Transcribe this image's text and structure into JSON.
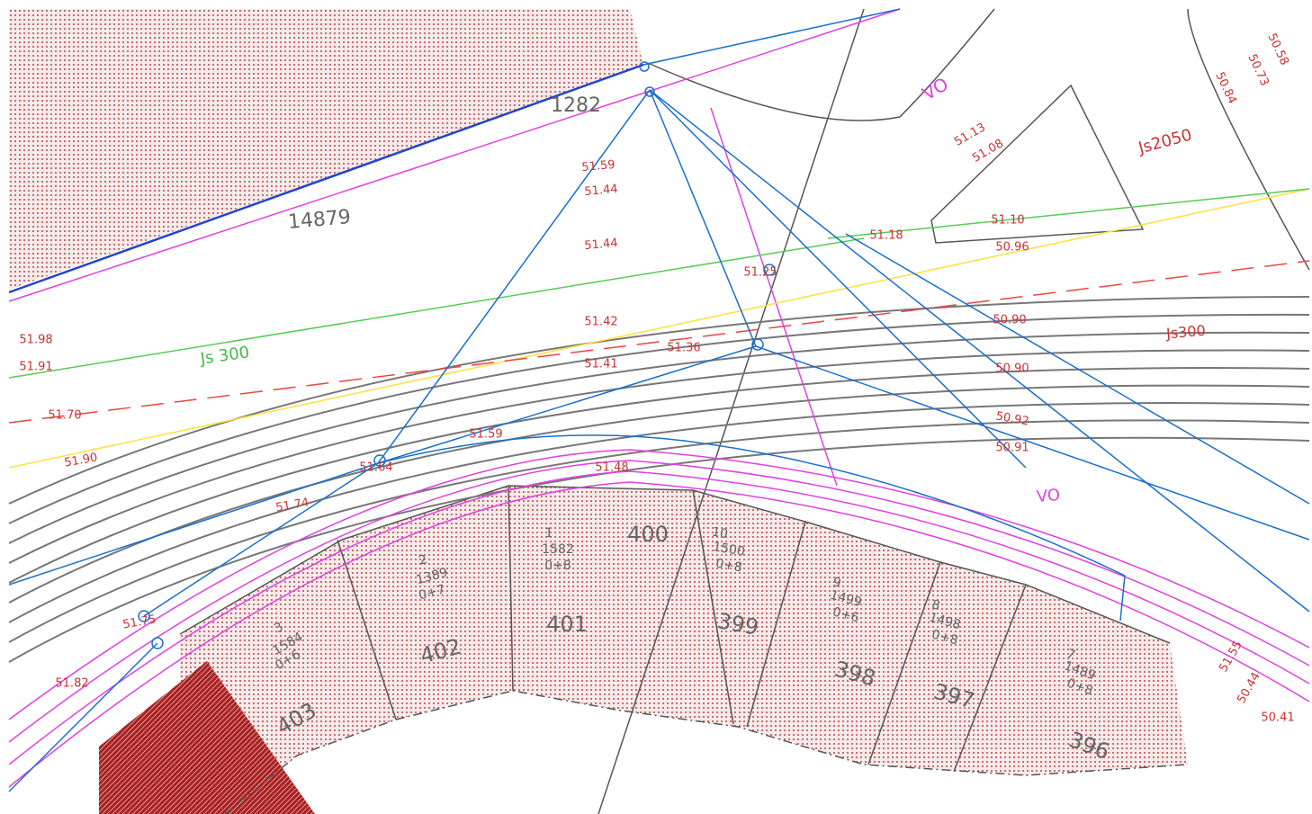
{
  "plan": {
    "parcels": [
      {
        "id": "403",
        "number": "3",
        "area": "1584",
        "code": "0+6"
      },
      {
        "id": "402",
        "number": "2",
        "area": "1389",
        "code": "0+7"
      },
      {
        "id": "401",
        "number": "1",
        "area": "1582",
        "code": "0+8"
      },
      {
        "id": "400"
      },
      {
        "id": "399",
        "number": "10",
        "area": "1500",
        "code": "0+8"
      },
      {
        "id": "398",
        "number": "9",
        "area": "1499",
        "code": "0+6"
      },
      {
        "id": "397",
        "number": "8",
        "area": "1498",
        "code": "0+8"
      },
      {
        "id": "396",
        "number": "7",
        "area": "1489",
        "code": "0+8"
      }
    ],
    "labels": [
      "1282",
      "14879",
      "Js 300",
      "Js300",
      "Js2050",
      "VO",
      "VO",
      "51.59",
      "51.44",
      "51.44",
      "51.42",
      "51.41",
      "51.36",
      "51.25",
      "51.18",
      "51.13",
      "51.08",
      "51.10",
      "50.96",
      "50.90",
      "50.90",
      "50.92",
      "50.91",
      "51.48",
      "51.59",
      "51.64",
      "51.74",
      "51.75",
      "51.82",
      "51.98",
      "51.91",
      "51.70",
      "51.90",
      "50.58",
      "50.73",
      "50.84",
      "50.44",
      "50.41",
      "51.55"
    ]
  }
}
